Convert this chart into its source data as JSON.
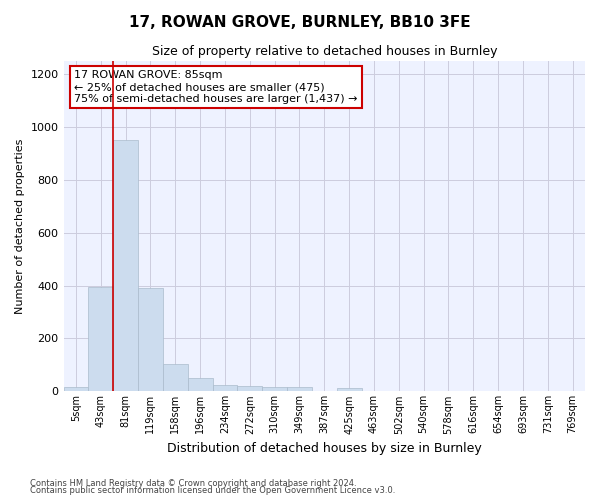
{
  "title": "17, ROWAN GROVE, BURNLEY, BB10 3FE",
  "subtitle": "Size of property relative to detached houses in Burnley",
  "xlabel": "Distribution of detached houses by size in Burnley",
  "ylabel": "Number of detached properties",
  "bin_labels": [
    "5sqm",
    "43sqm",
    "81sqm",
    "119sqm",
    "158sqm",
    "196sqm",
    "234sqm",
    "272sqm",
    "310sqm",
    "349sqm",
    "387sqm",
    "425sqm",
    "463sqm",
    "502sqm",
    "540sqm",
    "578sqm",
    "616sqm",
    "654sqm",
    "693sqm",
    "731sqm",
    "769sqm"
  ],
  "bar_heights": [
    15,
    395,
    950,
    390,
    105,
    50,
    25,
    22,
    15,
    15,
    0,
    12,
    0,
    0,
    0,
    0,
    0,
    0,
    0,
    0,
    0
  ],
  "bar_color": "#ccdcee",
  "bar_edgecolor": "#aabbcc",
  "grid_color": "#ccccdd",
  "background_color": "#eef2ff",
  "ylim": [
    0,
    1250
  ],
  "yticks": [
    0,
    200,
    400,
    600,
    800,
    1000,
    1200
  ],
  "annotation_text": "17 ROWAN GROVE: 85sqm\n← 25% of detached houses are smaller (475)\n75% of semi-detached houses are larger (1,437) →",
  "annotation_box_facecolor": "#ffffff",
  "annotation_box_edgecolor": "#cc0000",
  "red_line_x": 1.5,
  "footnote1": "Contains HM Land Registry data © Crown copyright and database right 2024.",
  "footnote2": "Contains public sector information licensed under the Open Government Licence v3.0."
}
